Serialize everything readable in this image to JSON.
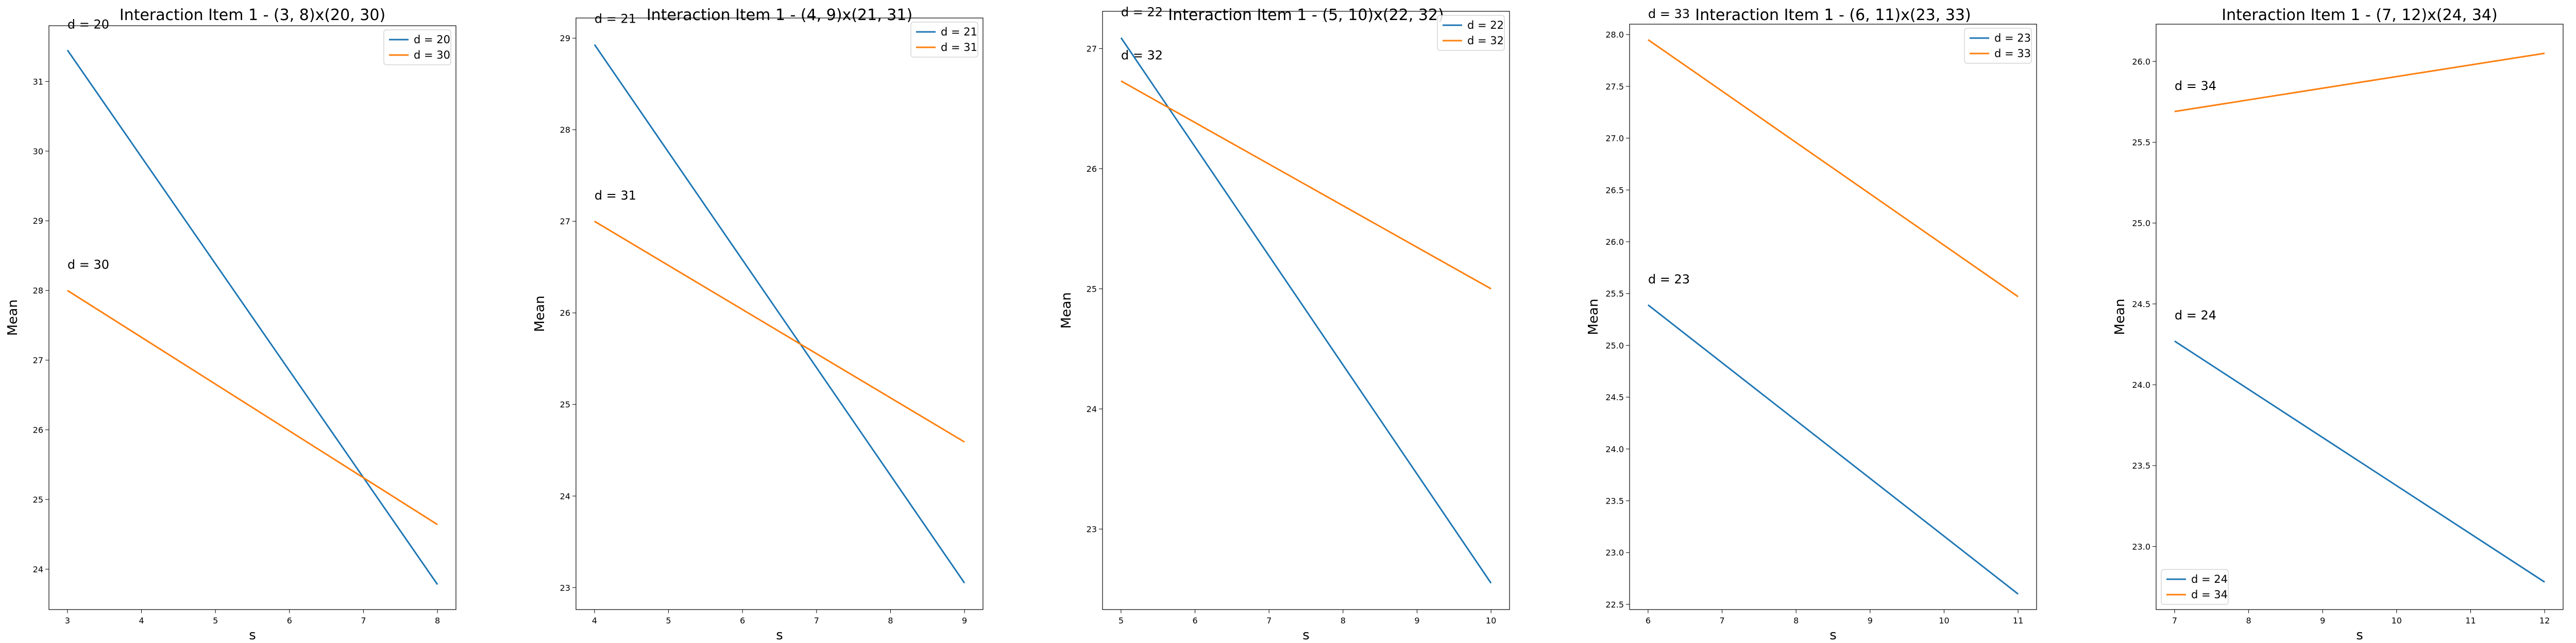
{
  "figure": {
    "colors": {
      "series1": "#1f77b4",
      "series2": "#ff7f0e"
    }
  },
  "chart_data": [
    {
      "type": "line",
      "title": "Interaction Item 1 - (3, 8)x(20, 30)",
      "xlabel": "s",
      "ylabel": "Mean",
      "xlim": [
        2.75,
        8.25
      ],
      "ylim": [
        23.42,
        31.8
      ],
      "xticks": [
        3,
        4,
        5,
        6,
        7,
        8
      ],
      "yticks": [
        24,
        25,
        26,
        27,
        28,
        29,
        30,
        31
      ],
      "legend_position": "upper right",
      "grid": false,
      "series": [
        {
          "name": "d = 20",
          "x": [
            3,
            8
          ],
          "y": [
            31.45,
            23.78
          ]
        },
        {
          "name": "d = 30",
          "x": [
            3,
            8
          ],
          "y": [
            28.0,
            24.64
          ]
        }
      ],
      "annotations": [
        {
          "text": "d = 20",
          "x": 3,
          "y": 31.45
        },
        {
          "text": "d = 30",
          "x": 3,
          "y": 28.0
        }
      ]
    },
    {
      "type": "line",
      "title": "Interaction Item 1 - (4, 9)x(21, 31)",
      "xlabel": "s",
      "ylabel": "Mean",
      "xlim": [
        3.75,
        9.25
      ],
      "ylim": [
        22.76,
        29.22
      ],
      "xticks": [
        4,
        5,
        6,
        7,
        8,
        9
      ],
      "yticks": [
        23,
        24,
        25,
        26,
        27,
        28,
        29
      ],
      "legend_position": "upper right",
      "grid": false,
      "series": [
        {
          "name": "d = 21",
          "x": [
            4,
            9
          ],
          "y": [
            28.93,
            23.05
          ]
        },
        {
          "name": "d = 31",
          "x": [
            4,
            9
          ],
          "y": [
            27.0,
            24.59
          ]
        }
      ],
      "annotations": [
        {
          "text": "d = 21",
          "x": 4,
          "y": 28.93
        },
        {
          "text": "d = 31",
          "x": 4,
          "y": 27.0
        }
      ]
    },
    {
      "type": "line",
      "title": "Interaction Item 1 - (5, 10)x(22, 32)",
      "xlabel": "s",
      "ylabel": "Mean",
      "xlim": [
        4.75,
        10.25
      ],
      "ylim": [
        22.33,
        27.31
      ],
      "xticks": [
        5,
        6,
        7,
        8,
        9,
        10
      ],
      "yticks": [
        23,
        24,
        25,
        26,
        27
      ],
      "legend_position": "upper right",
      "grid": false,
      "series": [
        {
          "name": "d = 22",
          "x": [
            5,
            10
          ],
          "y": [
            27.09,
            22.55
          ]
        },
        {
          "name": "d = 32",
          "x": [
            5,
            10
          ],
          "y": [
            26.73,
            25.0
          ]
        }
      ],
      "annotations": [
        {
          "text": "d = 22",
          "x": 5,
          "y": 27.09
        },
        {
          "text": "d = 32",
          "x": 5,
          "y": 26.73
        }
      ]
    },
    {
      "type": "line",
      "title": "Interaction Item 1 - (6, 11)x(23, 33)",
      "xlabel": "s",
      "ylabel": "Mean",
      "xlim": [
        5.75,
        11.25
      ],
      "ylim": [
        22.45,
        28.1
      ],
      "xticks": [
        6,
        7,
        8,
        9,
        10,
        11
      ],
      "yticks": [
        22.5,
        23.0,
        23.5,
        24.0,
        24.5,
        25.0,
        25.5,
        26.0,
        26.5,
        27.0,
        27.5,
        28.0
      ],
      "legend_position": "upper right",
      "grid": false,
      "series": [
        {
          "name": "d = 23",
          "x": [
            6,
            11
          ],
          "y": [
            25.39,
            22.6
          ]
        },
        {
          "name": "d = 33",
          "x": [
            6,
            11
          ],
          "y": [
            27.95,
            25.47
          ]
        }
      ],
      "annotations": [
        {
          "text": "d = 23",
          "x": 6,
          "y": 25.39
        },
        {
          "text": "d = 33",
          "x": 6,
          "y": 27.95
        }
      ]
    },
    {
      "type": "line",
      "title": "Interaction Item 1 - (7, 12)x(24, 34)",
      "xlabel": "s",
      "ylabel": "Mean",
      "xlim": [
        6.75,
        12.25
      ],
      "ylim": [
        22.61,
        26.23
      ],
      "xticks": [
        7,
        8,
        9,
        10,
        11,
        12
      ],
      "yticks": [
        23.0,
        23.5,
        24.0,
        24.5,
        25.0,
        25.5,
        26.0
      ],
      "legend_position": "lower left",
      "grid": false,
      "series": [
        {
          "name": "d = 24",
          "x": [
            7,
            12
          ],
          "y": [
            24.27,
            22.78
          ]
        },
        {
          "name": "d = 34",
          "x": [
            7,
            12
          ],
          "y": [
            25.69,
            26.05
          ]
        }
      ],
      "annotations": [
        {
          "text": "d = 24",
          "x": 7,
          "y": 24.27
        },
        {
          "text": "d = 34",
          "x": 7,
          "y": 25.69
        }
      ]
    }
  ]
}
